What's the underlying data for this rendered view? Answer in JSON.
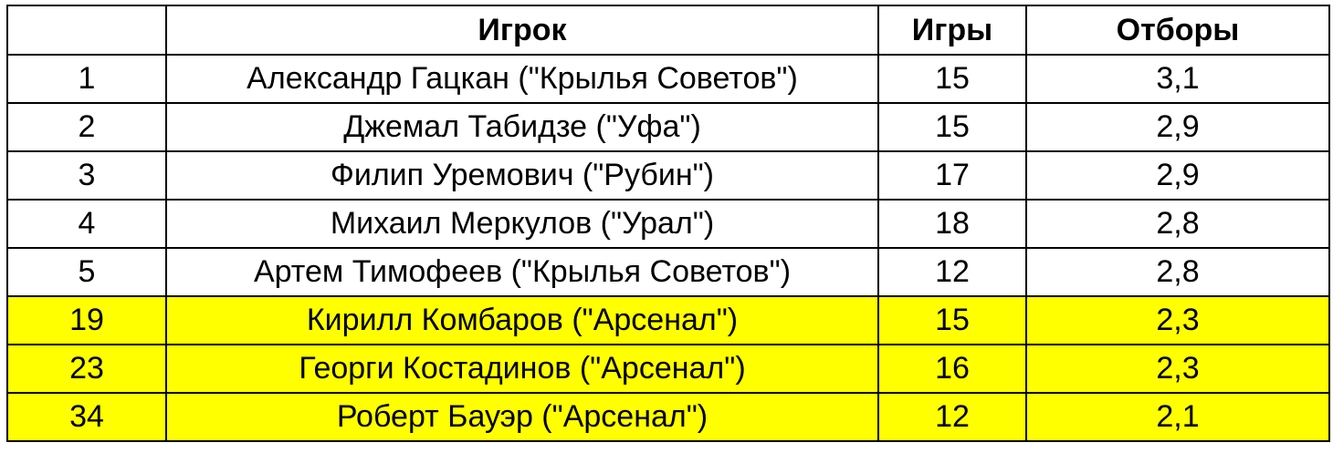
{
  "header": {
    "rank": "",
    "player": "Игрок",
    "games": "Игры",
    "tackles": "Отборы"
  },
  "highlight_color": "#ffff00",
  "rows": [
    {
      "rank": "1",
      "player": "Александр Гацкан (\"Крылья Советов\")",
      "games": "15",
      "tackles": "3,1",
      "highlighted": false
    },
    {
      "rank": "2",
      "player": "Джемал Табидзе (\"Уфа\")",
      "games": "15",
      "tackles": "2,9",
      "highlighted": false
    },
    {
      "rank": "3",
      "player": "Филип Уремович (\"Рубин\")",
      "games": "17",
      "tackles": "2,9",
      "highlighted": false
    },
    {
      "rank": "4",
      "player": "Михаил Меркулов (\"Урал\")",
      "games": "18",
      "tackles": "2,8",
      "highlighted": false
    },
    {
      "rank": "5",
      "player": "Артем Тимофеев (\"Крылья Советов\")",
      "games": "12",
      "tackles": "2,8",
      "highlighted": false
    },
    {
      "rank": "19",
      "player": "Кирилл Комбаров (\"Арсенал\")",
      "games": "15",
      "tackles": "2,3",
      "highlighted": true
    },
    {
      "rank": "23",
      "player": "Георги Костадинов (\"Арсенал\")",
      "games": "16",
      "tackles": "2,3",
      "highlighted": true
    },
    {
      "rank": "34",
      "player": "Роберт Бауэр (\"Арсенал\")",
      "games": "12",
      "tackles": "2,1",
      "highlighted": true
    }
  ]
}
